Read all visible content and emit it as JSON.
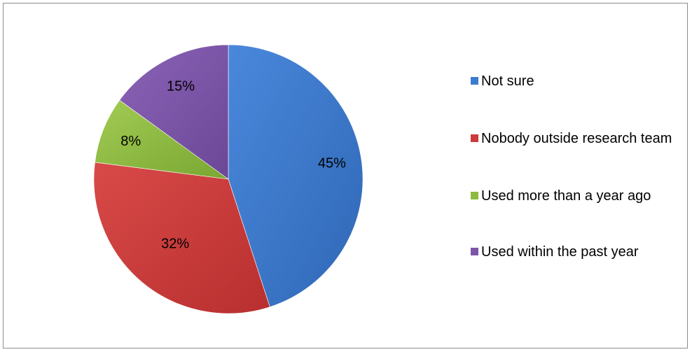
{
  "chart_data": {
    "type": "pie",
    "title": "",
    "legend_position": "right",
    "slices": [
      {
        "label": "Not sure",
        "value": 45,
        "display": "45%",
        "color": "#3d7bd0"
      },
      {
        "label": "Nobody outside research team",
        "value": 32,
        "display": "32%",
        "color": "#cc3b3b"
      },
      {
        "label": "Used more than a year ago",
        "value": 8,
        "display": "8%",
        "color": "#8dbb3e"
      },
      {
        "label": "Used within the past year",
        "value": 15,
        "display": "15%",
        "color": "#7d55a8"
      }
    ]
  }
}
